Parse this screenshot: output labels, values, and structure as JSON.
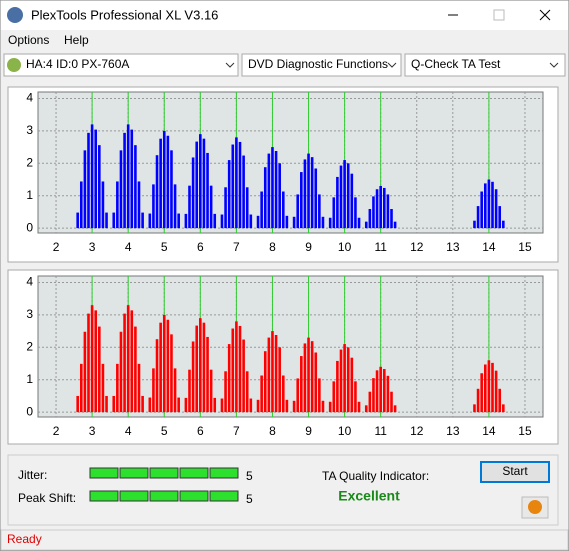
{
  "window": {
    "title": "PlexTools Professional XL V3.16"
  },
  "menu": [
    "Options",
    "Help"
  ],
  "toolbar": {
    "drive": "HA:4 ID:0  PX-760A",
    "function": "DVD Diagnostic Functions",
    "test": "Q-Check TA Test"
  },
  "chart_data": [
    {
      "type": "bar",
      "color": "#0000ff",
      "markers": [
        3,
        4,
        5,
        6,
        7,
        8,
        9,
        10,
        11,
        14
      ],
      "marker_color": "#33cc33",
      "x": [
        2.6,
        2.7,
        2.8,
        2.9,
        3.0,
        3.1,
        3.2,
        3.3,
        3.4,
        3.6,
        3.7,
        3.8,
        3.9,
        4.0,
        4.1,
        4.2,
        4.3,
        4.4,
        4.6,
        4.7,
        4.8,
        4.9,
        5.0,
        5.1,
        5.2,
        5.3,
        5.4,
        5.6,
        5.7,
        5.8,
        5.9,
        6.0,
        6.1,
        6.2,
        6.3,
        6.4,
        6.6,
        6.7,
        6.8,
        6.9,
        7.0,
        7.1,
        7.2,
        7.3,
        7.4,
        7.6,
        7.7,
        7.8,
        7.9,
        8.0,
        8.1,
        8.2,
        8.3,
        8.4,
        8.6,
        8.7,
        8.8,
        8.9,
        9.0,
        9.1,
        9.2,
        9.3,
        9.4,
        9.6,
        9.7,
        9.8,
        9.9,
        10.0,
        10.1,
        10.2,
        10.3,
        10.4,
        10.6,
        10.7,
        10.8,
        10.9,
        11.0,
        11.1,
        11.2,
        11.3,
        11.4,
        13.6,
        13.7,
        13.8,
        13.9,
        14.0,
        14.1,
        14.2,
        14.3,
        14.4
      ],
      "values": [
        0.48,
        1.44,
        2.4,
        2.94,
        3.2,
        3.04,
        2.56,
        1.44,
        0.48,
        0.48,
        1.44,
        2.4,
        2.94,
        3.2,
        3.04,
        2.56,
        1.44,
        0.48,
        0.45,
        1.35,
        2.25,
        2.76,
        3.0,
        2.85,
        2.4,
        1.35,
        0.45,
        0.44,
        1.31,
        2.18,
        2.67,
        2.9,
        2.76,
        2.32,
        1.31,
        0.44,
        0.42,
        1.26,
        2.1,
        2.58,
        2.8,
        2.66,
        2.24,
        1.26,
        0.42,
        0.38,
        1.13,
        1.88,
        2.3,
        2.5,
        2.38,
        2.0,
        1.13,
        0.38,
        0.35,
        1.04,
        1.73,
        2.12,
        2.3,
        2.19,
        1.84,
        1.04,
        0.35,
        0.32,
        0.95,
        1.58,
        1.93,
        2.1,
        2.0,
        1.68,
        0.95,
        0.32,
        0.2,
        0.59,
        0.98,
        1.2,
        1.3,
        1.24,
        1.04,
        0.59,
        0.2,
        0.23,
        0.68,
        1.13,
        1.38,
        1.5,
        1.43,
        1.2,
        0.68,
        0.23
      ],
      "xlim": [
        1.5,
        15.5
      ],
      "xticks": [
        2,
        3,
        4,
        5,
        6,
        7,
        8,
        9,
        10,
        11,
        12,
        13,
        14,
        15
      ],
      "ylim": [
        -0.15,
        4.2
      ],
      "yticks": [
        0,
        1,
        2,
        3,
        4
      ],
      "grid": true
    },
    {
      "type": "bar",
      "color": "#ff0000",
      "markers": [
        3,
        4,
        5,
        6,
        7,
        8,
        9,
        10,
        11,
        14
      ],
      "marker_color": "#33cc33",
      "x": [
        2.6,
        2.7,
        2.8,
        2.9,
        3.0,
        3.1,
        3.2,
        3.3,
        3.4,
        3.6,
        3.7,
        3.8,
        3.9,
        4.0,
        4.1,
        4.2,
        4.3,
        4.4,
        4.6,
        4.7,
        4.8,
        4.9,
        5.0,
        5.1,
        5.2,
        5.3,
        5.4,
        5.6,
        5.7,
        5.8,
        5.9,
        6.0,
        6.1,
        6.2,
        6.3,
        6.4,
        6.6,
        6.7,
        6.8,
        6.9,
        7.0,
        7.1,
        7.2,
        7.3,
        7.4,
        7.6,
        7.7,
        7.8,
        7.9,
        8.0,
        8.1,
        8.2,
        8.3,
        8.4,
        8.6,
        8.7,
        8.8,
        8.9,
        9.0,
        9.1,
        9.2,
        9.3,
        9.4,
        9.6,
        9.7,
        9.8,
        9.9,
        10.0,
        10.1,
        10.2,
        10.3,
        10.4,
        10.6,
        10.7,
        10.8,
        10.9,
        11.0,
        11.1,
        11.2,
        11.3,
        11.4,
        13.6,
        13.7,
        13.8,
        13.9,
        14.0,
        14.1,
        14.2,
        14.3,
        14.4
      ],
      "values": [
        0.5,
        1.49,
        2.48,
        3.04,
        3.3,
        3.14,
        2.64,
        1.49,
        0.5,
        0.5,
        1.49,
        2.48,
        3.04,
        3.3,
        3.14,
        2.64,
        1.49,
        0.5,
        0.45,
        1.35,
        2.25,
        2.76,
        3.0,
        2.85,
        2.4,
        1.35,
        0.45,
        0.44,
        1.31,
        2.18,
        2.67,
        2.9,
        2.76,
        2.32,
        1.31,
        0.44,
        0.42,
        1.26,
        2.1,
        2.58,
        2.8,
        2.66,
        2.24,
        1.26,
        0.42,
        0.38,
        1.13,
        1.88,
        2.3,
        2.5,
        2.38,
        2.0,
        1.13,
        0.38,
        0.35,
        1.04,
        1.73,
        2.12,
        2.3,
        2.19,
        1.84,
        1.04,
        0.35,
        0.32,
        0.95,
        1.58,
        1.93,
        2.1,
        2.0,
        1.68,
        0.95,
        0.32,
        0.21,
        0.63,
        1.05,
        1.29,
        1.4,
        1.33,
        1.12,
        0.63,
        0.21,
        0.24,
        0.72,
        1.2,
        1.47,
        1.6,
        1.52,
        1.28,
        0.72,
        0.24
      ],
      "xlim": [
        1.5,
        15.5
      ],
      "xticks": [
        2,
        3,
        4,
        5,
        6,
        7,
        8,
        9,
        10,
        11,
        12,
        13,
        14,
        15
      ],
      "ylim": [
        -0.15,
        4.2
      ],
      "yticks": [
        0,
        1,
        2,
        3,
        4
      ],
      "grid": true
    }
  ],
  "results": {
    "jitter_label": "Jitter:",
    "jitter": 5,
    "peak_shift_label": "Peak Shift:",
    "peak_shift": 5,
    "ta_label": "TA Quality Indicator:",
    "ta_result": "Excellent",
    "start": "Start"
  },
  "status": "Ready"
}
